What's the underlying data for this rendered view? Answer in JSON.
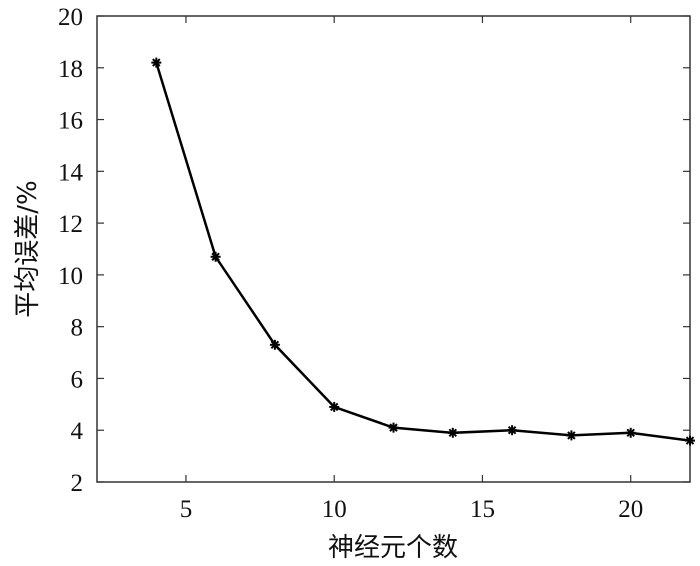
{
  "chart_data": {
    "type": "line",
    "title": "",
    "xlabel": "神经元个数",
    "ylabel": "平均误差/%",
    "xlim": [
      2,
      22
    ],
    "ylim": [
      2,
      20
    ],
    "xticks": [
      5,
      10,
      15,
      20
    ],
    "yticks": [
      2,
      4,
      6,
      8,
      10,
      12,
      14,
      16,
      18,
      20
    ],
    "grid": false,
    "marker": "asterisk",
    "line_color": "#000000",
    "series": [
      {
        "x": [
          4,
          6,
          8,
          10,
          12,
          14,
          16,
          18,
          20,
          22
        ],
        "y": [
          18.2,
          10.7,
          7.3,
          4.9,
          4.1,
          3.9,
          4.0,
          3.8,
          3.9,
          3.6
        ]
      }
    ]
  }
}
